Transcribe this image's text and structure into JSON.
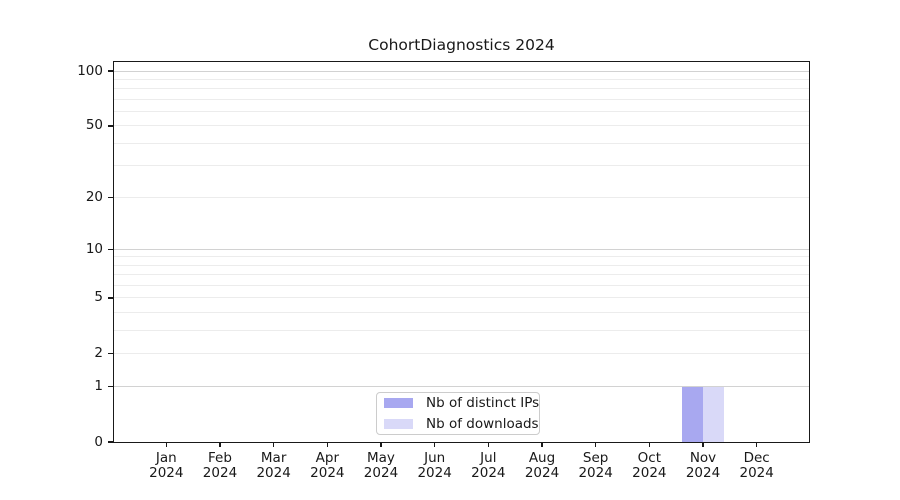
{
  "chart_data": {
    "type": "bar",
    "title": "CohortDiagnostics 2024",
    "categories": [
      "Jan 2024",
      "Feb 2024",
      "Mar 2024",
      "Apr 2024",
      "May 2024",
      "Jun 2024",
      "Jul 2024",
      "Aug 2024",
      "Sep 2024",
      "Oct 2024",
      "Nov 2024",
      "Dec 2024"
    ],
    "series": [
      {
        "name": "Nb of distinct IPs",
        "color": "#a8a8f0",
        "values": [
          0,
          0,
          0,
          0,
          0,
          0,
          0,
          0,
          0,
          0,
          1,
          0
        ]
      },
      {
        "name": "Nb of downloads",
        "color": "#d9d9f8",
        "values": [
          0,
          0,
          0,
          0,
          0,
          0,
          0,
          0,
          0,
          0,
          1,
          0
        ]
      }
    ],
    "xlabel": "",
    "ylabel": "",
    "y_scale": "log1p",
    "ylim": [
      0,
      112
    ],
    "y_ticks": [
      0,
      1,
      2,
      5,
      10,
      20,
      50,
      100
    ],
    "y_gridlines_major": [
      1,
      10,
      100
    ],
    "y_gridlines_minor": [
      2,
      3,
      4,
      5,
      6,
      7,
      8,
      9,
      20,
      30,
      40,
      50,
      60,
      70,
      80,
      90
    ],
    "grid": true,
    "legend_position": "lower center",
    "colors": {
      "axis": "#191919",
      "grid_major": "#d2d2d2",
      "grid_minor": "#ececec",
      "background": "#ffffff"
    }
  }
}
